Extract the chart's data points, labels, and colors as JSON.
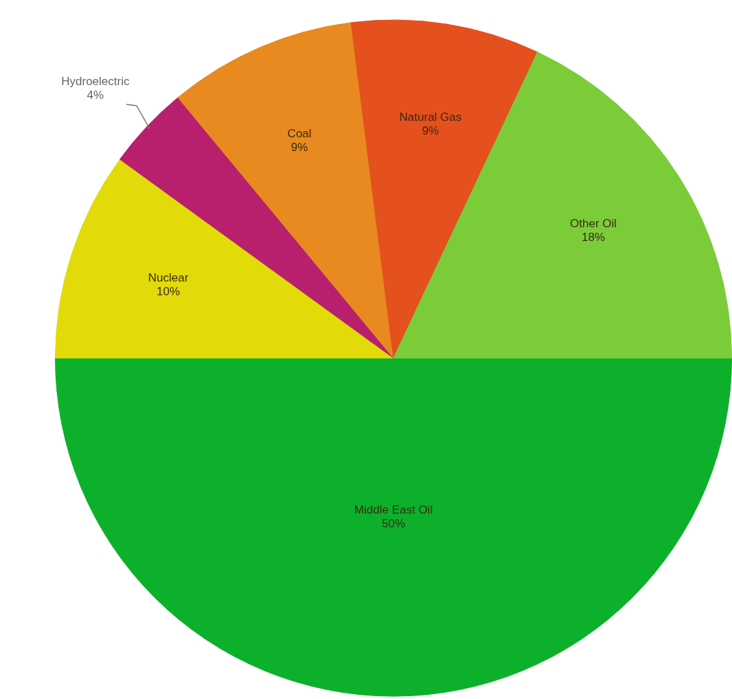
{
  "chart_data": {
    "type": "pie",
    "categories": [
      "Middle East Oil",
      "Nuclear",
      "Hydroelectric",
      "Coal",
      "Natural Gas",
      "Other Oil"
    ],
    "values": [
      50,
      10,
      4,
      9,
      9,
      18
    ],
    "value_labels": [
      "50%",
      "10%",
      "4%",
      "9%",
      "9%",
      "18%"
    ],
    "colors": [
      "#0db02b",
      "#e3da0a",
      "#b8206e",
      "#e88a20",
      "#e4501e",
      "#7ccc3a"
    ],
    "legend": false
  }
}
